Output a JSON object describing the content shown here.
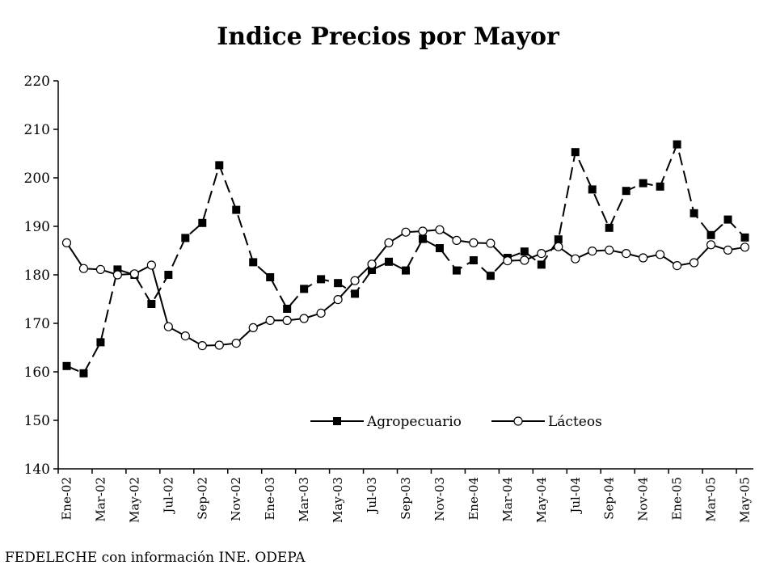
{
  "chart_data": {
    "type": "line",
    "title": "Indice Precios por Mayor",
    "source": "FEDELECHE con información INE. ODEPA",
    "ylim": [
      140,
      220
    ],
    "yticks": [
      140,
      150,
      160,
      170,
      180,
      190,
      200,
      210,
      220
    ],
    "x": [
      "Ene-02",
      "Feb-02",
      "Mar-02",
      "Abr-02",
      "May-02",
      "Jun-02",
      "Jul-02",
      "Ago-02",
      "Sep-02",
      "Oct-02",
      "Nov-02",
      "Dic-02",
      "Ene-03",
      "Feb-03",
      "Mar-03",
      "Abr-03",
      "May-03",
      "Jun-03",
      "Jul-03",
      "Ago-03",
      "Sep-03",
      "Oct-03",
      "Nov-03",
      "Dic-03",
      "Ene-04",
      "Feb-04",
      "Mar-04",
      "Abr-04",
      "May-04",
      "Jun-04",
      "Jul-04",
      "Ago-04",
      "Sep-04",
      "Oct-04",
      "Nov-04",
      "Dic-04",
      "Ene-05",
      "Feb-05",
      "Mar-05",
      "Abr-05",
      "May-05"
    ],
    "xtick_labels": [
      "Ene-02",
      "Mar-02",
      "May-02",
      "Jul-02",
      "Sep-02",
      "Nov-02",
      "Ene-03",
      "Mar-03",
      "May-03",
      "Jul-03",
      "Sep-03",
      "Nov-03",
      "Ene-04",
      "Mar-04",
      "May-04",
      "Jul-04",
      "Sep-04",
      "Nov-04",
      "Ene-05",
      "Mar-05",
      "May-05"
    ],
    "grid": false,
    "legend_position": "bottom-right",
    "series": [
      {
        "name": "Agropecuario",
        "marker": "filled-square",
        "line": "dashed",
        "color": "#000000",
        "values": [
          161.2,
          159.7,
          166.1,
          181.1,
          180.0,
          174.0,
          180.0,
          187.6,
          190.7,
          202.6,
          193.4,
          182.6,
          179.5,
          173.0,
          177.1,
          179.1,
          178.3,
          176.1,
          181.0,
          182.7,
          180.9,
          187.4,
          185.5,
          180.9,
          183.0,
          179.8,
          183.5,
          184.8,
          182.1,
          187.3,
          205.3,
          197.6,
          189.7,
          197.3,
          198.9,
          198.2,
          206.9,
          192.7,
          188.2,
          191.4,
          187.7
        ]
      },
      {
        "name": "Lácteos",
        "marker": "open-circle",
        "line": "solid",
        "color": "#000000",
        "values": [
          186.6,
          181.3,
          181.1,
          180.0,
          180.2,
          182.0,
          169.3,
          167.4,
          165.4,
          165.5,
          165.9,
          169.1,
          170.6,
          170.6,
          171.0,
          172.1,
          174.9,
          178.8,
          182.2,
          186.6,
          188.8,
          189.0,
          189.3,
          187.1,
          186.6,
          186.5,
          182.9,
          183.0,
          184.4,
          185.8,
          183.3,
          184.9,
          185.1,
          184.4,
          183.5,
          184.2,
          181.9,
          182.5,
          186.2,
          185.1,
          185.7
        ]
      }
    ]
  }
}
